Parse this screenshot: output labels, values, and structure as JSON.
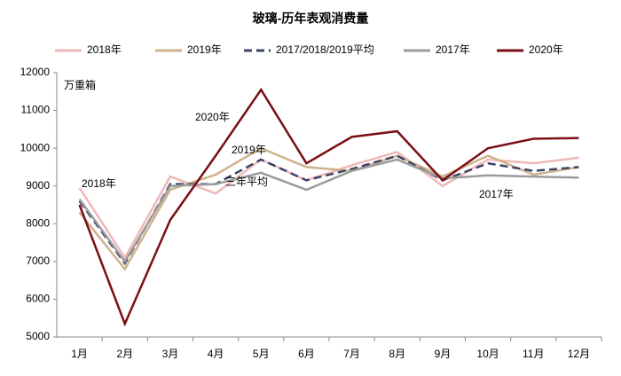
{
  "chart_data": {
    "type": "line",
    "title": "玻璃-历年表观消费量",
    "y_label": "万重箱",
    "categories": [
      "1月",
      "2月",
      "3月",
      "4月",
      "5月",
      "6月",
      "7月",
      "8月",
      "9月",
      "10月",
      "11月",
      "12月"
    ],
    "series": [
      {
        "name": "2018年",
        "color": "#f0b8b8",
        "dash": false,
        "values": [
          8950,
          7100,
          9250,
          8800,
          9700,
          9150,
          9550,
          9900,
          9000,
          9700,
          9600,
          9750
        ]
      },
      {
        "name": "2019年",
        "color": "#cfb28c",
        "dash": false,
        "values": [
          8300,
          6800,
          8900,
          9300,
          10000,
          9500,
          9400,
          9800,
          9250,
          9800,
          9300,
          9500
        ]
      },
      {
        "name": "2017/2018/2019平均",
        "color": "#3d4468",
        "dash": true,
        "values": [
          8600,
          6950,
          9050,
          9050,
          9700,
          9150,
          9450,
          9800,
          9150,
          9600,
          9400,
          9500
        ]
      },
      {
        "name": "2017年",
        "color": "#9c9c9c",
        "dash": false,
        "values": [
          8650,
          7000,
          9000,
          9050,
          9350,
          8900,
          9400,
          9700,
          9200,
          9280,
          9250,
          9220
        ]
      },
      {
        "name": "2020年",
        "color": "#7a0f14",
        "dash": false,
        "values": [
          8500,
          5350,
          8100,
          9800,
          11550,
          9600,
          10300,
          10450,
          9150,
          10000,
          10250,
          10270
        ]
      }
    ],
    "annotations": [
      "2018年",
      "2020年",
      "2019年",
      "三年平均",
      "2017年"
    ],
    "ylim": [
      5000,
      12000
    ],
    "yticks": [
      5000,
      6000,
      7000,
      8000,
      9000,
      10000,
      11000,
      12000
    ],
    "grid": false,
    "legend": "top"
  }
}
